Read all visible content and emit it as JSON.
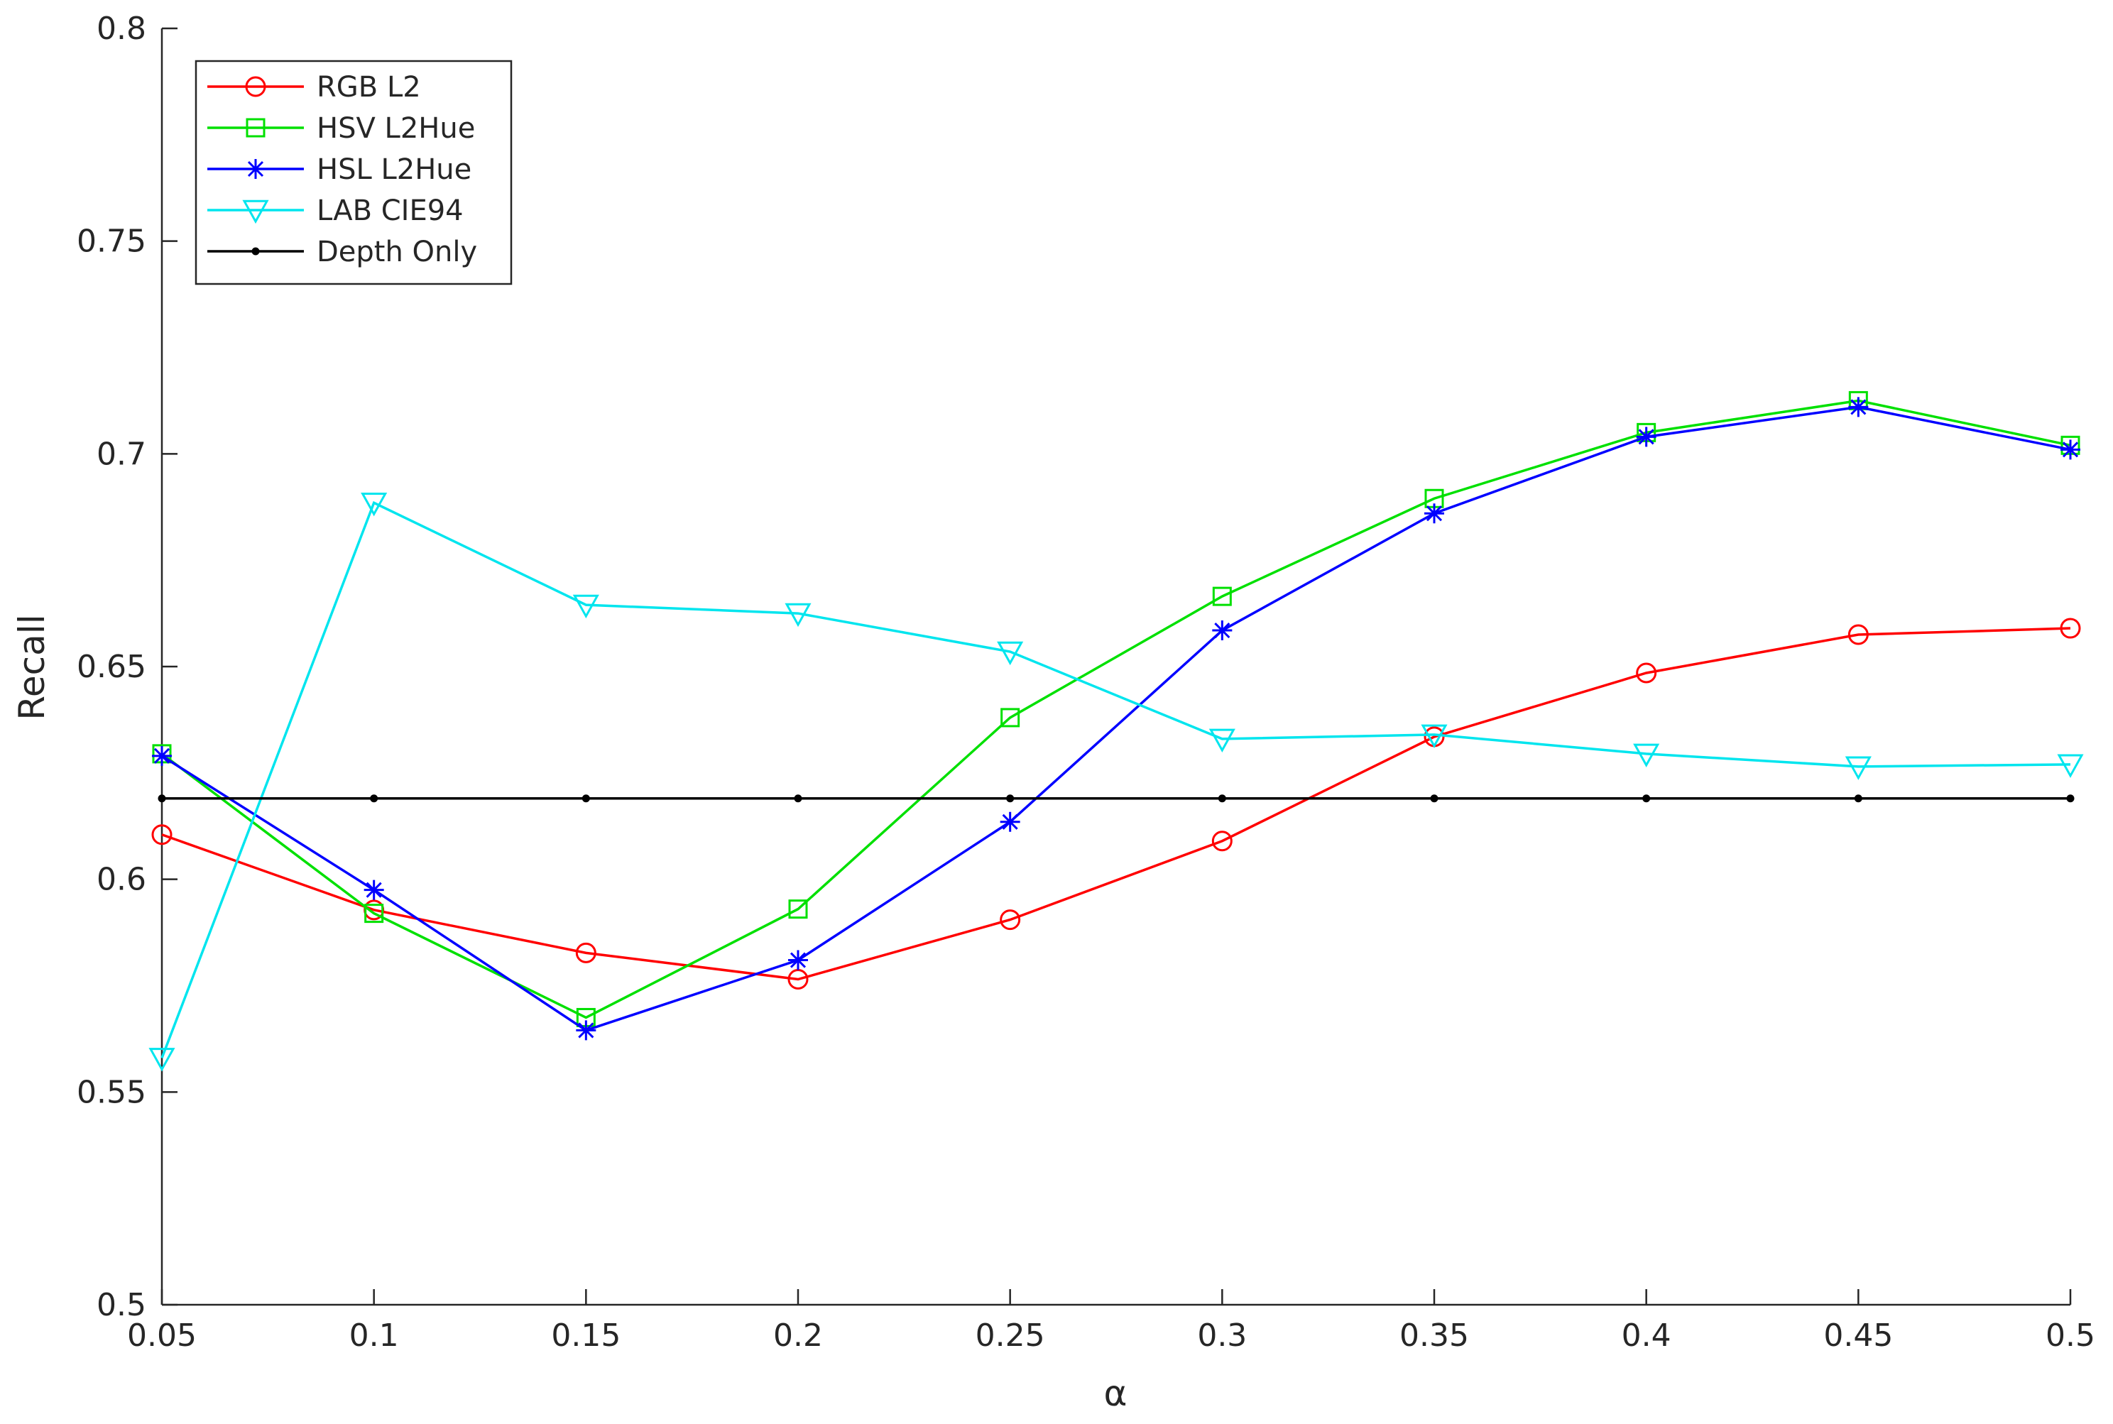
{
  "chart_data": {
    "type": "line",
    "title": "",
    "xlabel": "α",
    "ylabel": "Recall",
    "xlim": [
      0.05,
      0.5
    ],
    "ylim": [
      0.5,
      0.8
    ],
    "x": [
      0.05,
      0.1,
      0.15,
      0.2,
      0.25,
      0.3,
      0.35,
      0.4,
      0.45,
      0.5
    ],
    "x_tick_labels": [
      "0.05",
      "0.1",
      "0.15",
      "0.2",
      "0.25",
      "0.3",
      "0.35",
      "0.4",
      "0.45",
      "0.5"
    ],
    "y_ticks": [
      0.5,
      0.55,
      0.6,
      0.65,
      0.7,
      0.75,
      0.8
    ],
    "y_tick_labels": [
      "0.5",
      "0.55",
      "0.6",
      "0.65",
      "0.7",
      "0.75",
      "0.8"
    ],
    "grid": false,
    "legend_position": "top-left",
    "series": [
      {
        "name": "RGB L2",
        "color": "#ff0000",
        "marker": "circle",
        "values": [
          0.6105,
          0.5928,
          0.5827,
          0.5765,
          0.5905,
          0.609,
          0.6335,
          0.6485,
          0.6575,
          0.659
        ]
      },
      {
        "name": "HSV L2Hue",
        "color": "#00e000",
        "marker": "square",
        "values": [
          0.6295,
          0.592,
          0.5675,
          0.593,
          0.638,
          0.6665,
          0.6895,
          0.705,
          0.7125,
          0.702
        ]
      },
      {
        "name": "HSL L2Hue",
        "color": "#0000ff",
        "marker": "asterisk",
        "values": [
          0.629,
          0.5975,
          0.5645,
          0.581,
          0.6135,
          0.6585,
          0.686,
          0.704,
          0.711,
          0.701
        ]
      },
      {
        "name": "LAB CIE94",
        "color": "#00e5ee",
        "marker": "triangle-down",
        "values": [
          0.558,
          0.6885,
          0.6645,
          0.6625,
          0.6535,
          0.633,
          0.634,
          0.6295,
          0.6265,
          0.627
        ]
      },
      {
        "name": "Depth Only",
        "color": "#000000",
        "marker": "dot",
        "values": [
          0.619,
          0.619,
          0.619,
          0.619,
          0.619,
          0.619,
          0.619,
          0.619,
          0.619,
          0.619
        ]
      }
    ]
  }
}
